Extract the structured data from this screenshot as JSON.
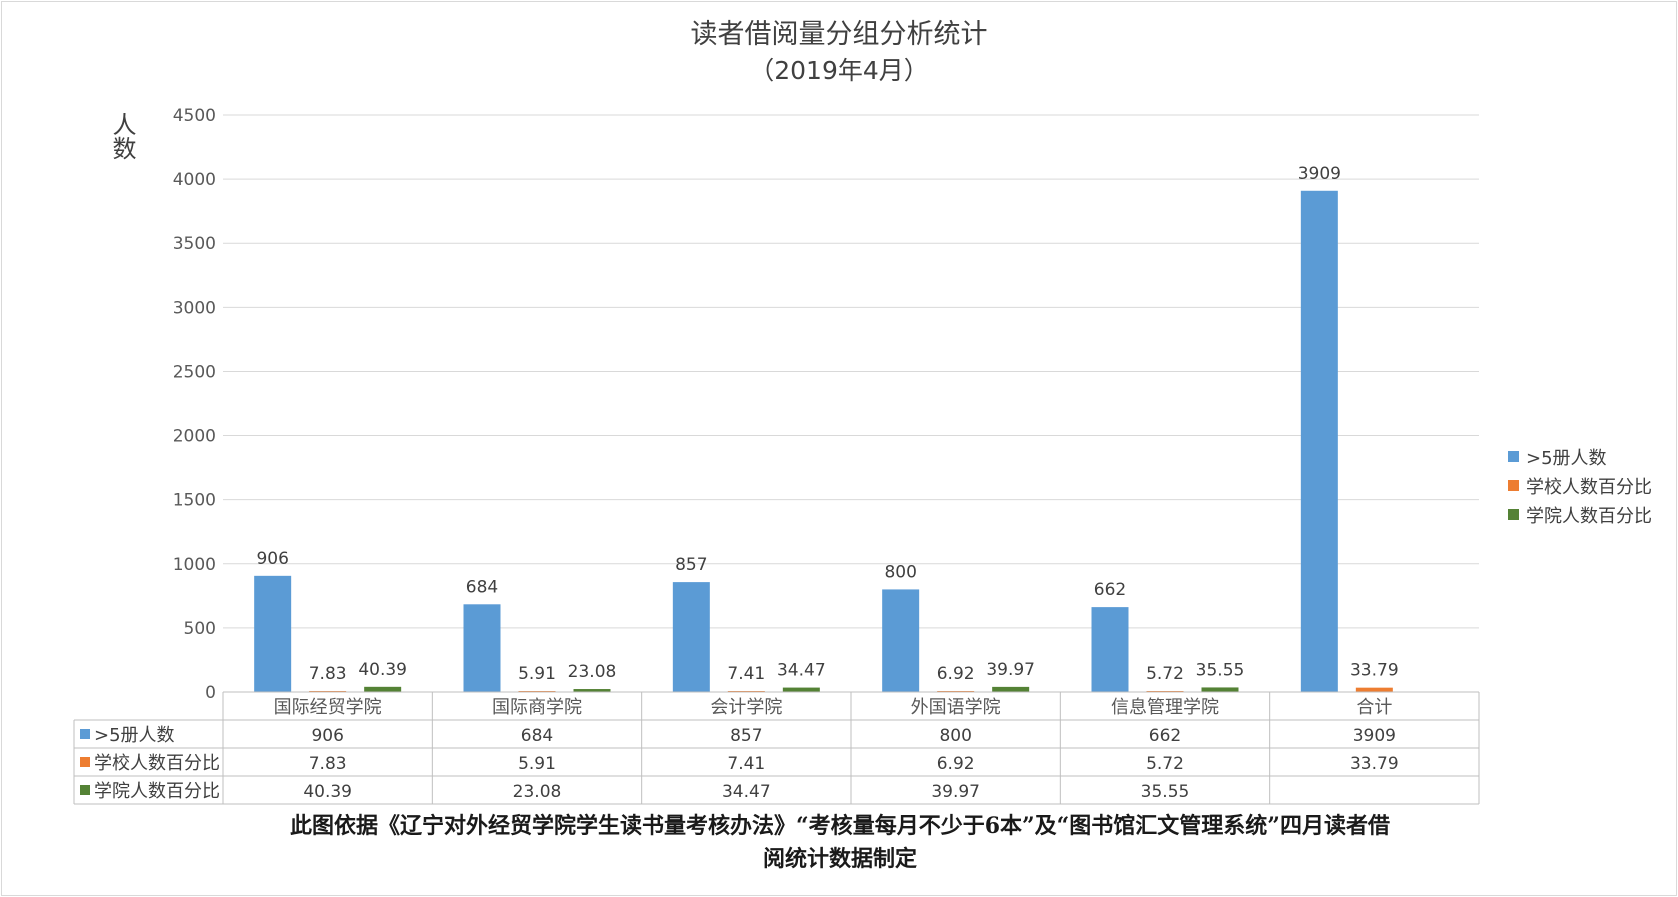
{
  "chart_data": {
    "type": "bar",
    "title": "读者借阅量分组分析统计",
    "subtitle": "（2019年4月）",
    "ylabel": "人数",
    "xlabel": "",
    "ylim": [
      0,
      4500
    ],
    "yticks": [
      0,
      500,
      1000,
      1500,
      2000,
      2500,
      3000,
      3500,
      4000,
      4500
    ],
    "grid": true,
    "legend_position": "right",
    "categories": [
      "国际经贸学院",
      "国际商学院",
      "会计学院",
      "外国语学院",
      "信息管理学院",
      "合计"
    ],
    "series": [
      {
        "name": ">5册人数",
        "color": "#5b9bd5",
        "values": [
          906,
          684,
          857,
          800,
          662,
          3909
        ]
      },
      {
        "name": "学校人数百分比",
        "color": "#ed7d31",
        "values": [
          7.83,
          5.91,
          7.41,
          6.92,
          5.72,
          33.79
        ]
      },
      {
        "name": "学院人数百分比",
        "color": "#548235",
        "values": [
          40.39,
          23.08,
          34.47,
          39.97,
          35.55,
          null
        ]
      }
    ],
    "data_table": true
  },
  "caption": {
    "line1": "此图依据《辽宁对外经贸学院学生读书量考核办法》“考核量每月不少于6本”及“图书馆汇文管理系统”四月读者借",
    "line2": "阅统计数据制定"
  }
}
